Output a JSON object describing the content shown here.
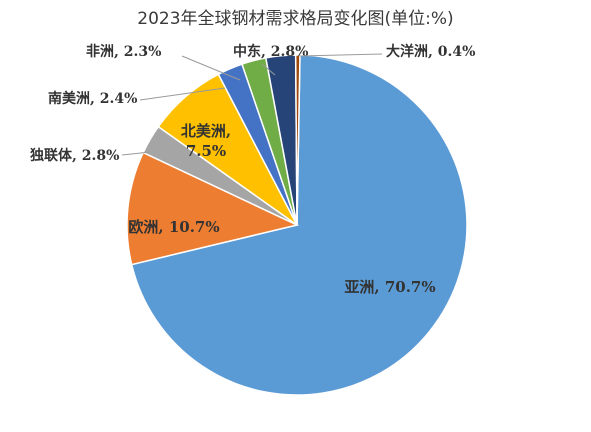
{
  "chart_data": {
    "type": "pie",
    "title": "2023年全球钢材需求格局变化图(单位:%)",
    "unit": "%",
    "start_angle_deg": 1,
    "slices": [
      {
        "name": "亚洲",
        "label": "亚洲, 70.7%",
        "value": 70.7,
        "color": "#5b9bd5",
        "label_pos": "inside"
      },
      {
        "name": "欧洲",
        "label": "欧洲, 10.7%",
        "value": 10.7,
        "color": "#ed7d31",
        "label_pos": "inside"
      },
      {
        "name": "独联体",
        "label": "独联体, 2.8%",
        "value": 2.8,
        "color": "#a5a5a5",
        "label_pos": "outside"
      },
      {
        "name": "北美洲",
        "label": "北美洲, 7.5%",
        "value": 7.5,
        "color": "#ffc000",
        "label_pos": "inside"
      },
      {
        "name": "南美洲",
        "label": "南美洲, 2.4%",
        "value": 2.4,
        "color": "#4472c4",
        "label_pos": "outside"
      },
      {
        "name": "非洲",
        "label": "非洲, 2.3%",
        "value": 2.3,
        "color": "#70ad47",
        "label_pos": "outside"
      },
      {
        "name": "中东",
        "label": "中东, 2.8%",
        "value": 2.8,
        "color": "#264478",
        "label_pos": "outside"
      },
      {
        "name": "大洋洲",
        "label": "大洋洲, 0.4%",
        "value": 0.4,
        "color": "#9e480e",
        "label_pos": "outside"
      }
    ]
  }
}
